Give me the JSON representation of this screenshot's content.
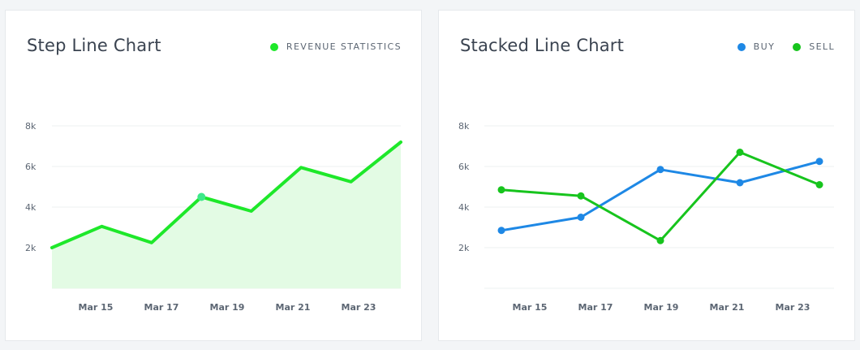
{
  "chart_data": [
    {
      "type": "area",
      "title": "Step Line Chart",
      "legend": [
        "REVENUE STATISTICS"
      ],
      "legend_position": "top-right",
      "x_tick_labels": [
        "Mar 15",
        "Mar 17",
        "Mar 19",
        "Mar 21",
        "Mar 23"
      ],
      "y_tick_labels": [
        "2k",
        "4k",
        "6k",
        "8k"
      ],
      "ylim": [
        0,
        8000
      ],
      "grid": true,
      "series": [
        {
          "name": "REVENUE STATISTICS",
          "color": "#1ee82a",
          "fill": "#e3fbe4",
          "values": [
            2000,
            3050,
            2250,
            4500,
            3800,
            5950,
            5250,
            7200
          ]
        }
      ],
      "highlighted_point_index": 3,
      "highlight_color": "#3ee88a"
    },
    {
      "type": "line",
      "title": "Stacked Line Chart",
      "legend": [
        "BUY",
        "SELL"
      ],
      "legend_position": "top-right",
      "x_tick_labels": [
        "Mar 15",
        "Mar 17",
        "Mar 19",
        "Mar 21",
        "Mar 23"
      ],
      "y_tick_labels": [
        "2k",
        "4k",
        "6k",
        "8k"
      ],
      "ylim": [
        0,
        8000
      ],
      "grid": true,
      "series": [
        {
          "name": "BUY",
          "color": "#1e88e5",
          "values": [
            2850,
            3500,
            5850,
            5200,
            6250
          ]
        },
        {
          "name": "SELL",
          "color": "#17c41d",
          "values": [
            4850,
            4550,
            2350,
            6700,
            5100
          ]
        }
      ]
    }
  ]
}
